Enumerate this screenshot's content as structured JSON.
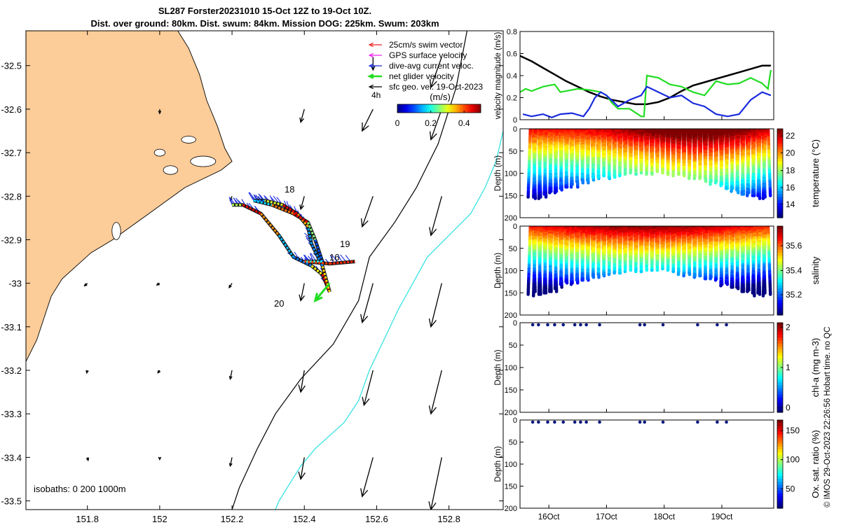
{
  "title": {
    "line1": "SL287 Forster20231010 15-Oct 12Z to 19-Oct 10Z.",
    "line2": "Dist. over ground: 80km. Dist. swum: 84km. Mission DOG: 225km. Swum: 203km"
  },
  "copyright": "© IMOS 29-Oct-2023 22:26:56 Hobart time. no QC",
  "colors": {
    "land": "#fccc99",
    "black": "#000000",
    "cyan": "#39e2e2",
    "green": "#22dd22",
    "blue": "#1a2bdd",
    "red": "#ee2222",
    "magenta": "#ee22ee",
    "navy": "#0a1a80"
  },
  "chart_data": [
    {
      "type": "scatter",
      "id": "map",
      "xlim": [
        151.63,
        152.95
      ],
      "ylim": [
        -33.52,
        -32.42
      ],
      "xticks": [
        151.8,
        152,
        152.2,
        152.4,
        152.6,
        152.8
      ],
      "xtick_labels": [
        "151.8",
        "152",
        "152.2",
        "152.4",
        "152.6",
        "152.8"
      ],
      "yticks": [
        -32.5,
        -32.6,
        -32.7,
        -32.8,
        -32.9,
        -33,
        -33.1,
        -33.2,
        -33.3,
        -33.4,
        -33.5
      ],
      "ytick_labels": [
        "-32.5",
        "-32.6",
        "-32.7",
        "-32.8",
        "-32.9",
        "-33",
        "-33.1",
        "-33.2",
        "-33.3",
        "-33.4",
        "-33.5"
      ],
      "legend": [
        {
          "label": "25cm/s swim vector",
          "color": "#ee2222"
        },
        {
          "label": "GPS surface velocity",
          "color": "#ee22ee"
        },
        {
          "label": "dive-avg current veloc.",
          "color": "#1a2bdd"
        },
        {
          "label": "net glider velocity",
          "color": "#22dd22"
        },
        {
          "label": "sfc geo. vel. 19-Oct-2023",
          "color": "#000000"
        }
      ],
      "legend_extra": "4h",
      "colorbar": {
        "label": "(m/s)",
        "ticks": [
          "0",
          "0.2",
          "0.4"
        ],
        "range": [
          0,
          0.5
        ]
      },
      "isobath_label": "isobaths: 0   200  1000m",
      "track_labels": [
        "18",
        "19",
        "16",
        "20"
      ],
      "coast": [
        [
          151.63,
          -32.42
        ],
        [
          152.05,
          -32.42
        ],
        [
          152.08,
          -32.46
        ],
        [
          152.11,
          -32.52
        ],
        [
          152.13,
          -32.58
        ],
        [
          152.16,
          -32.64
        ],
        [
          152.18,
          -32.69
        ],
        [
          152.2,
          -32.72
        ],
        [
          152.17,
          -32.74
        ],
        [
          152.12,
          -32.76
        ],
        [
          152.07,
          -32.78
        ],
        [
          152.02,
          -32.81
        ],
        [
          151.97,
          -32.84
        ],
        [
          151.92,
          -32.87
        ],
        [
          151.87,
          -32.9
        ],
        [
          151.81,
          -32.93
        ],
        [
          151.77,
          -32.96
        ],
        [
          151.73,
          -32.99
        ],
        [
          151.7,
          -33.03
        ],
        [
          151.68,
          -33.08
        ],
        [
          151.66,
          -33.13
        ],
        [
          151.63,
          -33.18
        ]
      ],
      "isobath_200": [
        [
          152.85,
          -32.42
        ],
        [
          152.82,
          -32.55
        ],
        [
          152.77,
          -32.68
        ],
        [
          152.71,
          -32.78
        ],
        [
          152.65,
          -32.86
        ],
        [
          152.58,
          -32.94
        ],
        [
          152.55,
          -33.04
        ],
        [
          152.48,
          -33.14
        ],
        [
          152.39,
          -33.22
        ],
        [
          152.32,
          -33.3
        ],
        [
          152.27,
          -33.38
        ],
        [
          152.22,
          -33.47
        ],
        [
          152.2,
          -33.52
        ]
      ],
      "isobath_1000": [
        [
          152.95,
          -32.65
        ],
        [
          152.93,
          -32.72
        ],
        [
          152.9,
          -32.78
        ],
        [
          152.86,
          -32.84
        ],
        [
          152.8,
          -32.89
        ],
        [
          152.74,
          -32.94
        ],
        [
          152.7,
          -33.0
        ],
        [
          152.66,
          -33.06
        ],
        [
          152.62,
          -33.13
        ],
        [
          152.58,
          -33.2
        ],
        [
          152.55,
          -33.27
        ],
        [
          152.51,
          -33.32
        ],
        [
          152.47,
          -33.35
        ],
        [
          152.43,
          -33.38
        ],
        [
          152.39,
          -33.42
        ],
        [
          152.36,
          -33.46
        ],
        [
          152.33,
          -33.5
        ],
        [
          152.32,
          -33.52
        ]
      ],
      "track": [
        [
          152.2,
          -32.82
        ],
        [
          152.23,
          -32.82
        ],
        [
          152.28,
          -32.84
        ],
        [
          152.33,
          -32.89
        ],
        [
          152.37,
          -32.94
        ],
        [
          152.42,
          -32.96
        ],
        [
          152.45,
          -32.98
        ],
        [
          152.47,
          -33.02
        ],
        [
          152.45,
          -32.96
        ],
        [
          152.42,
          -32.91
        ],
        [
          152.41,
          -32.87
        ],
        [
          152.38,
          -32.84
        ],
        [
          152.34,
          -32.82
        ],
        [
          152.29,
          -32.81
        ],
        [
          152.26,
          -32.81
        ],
        [
          152.31,
          -32.82
        ],
        [
          152.37,
          -32.84
        ],
        [
          152.41,
          -32.86
        ],
        [
          152.43,
          -32.9
        ],
        [
          152.45,
          -32.95
        ],
        [
          152.4,
          -32.95
        ],
        [
          152.47,
          -32.955
        ],
        [
          152.54,
          -32.95
        ]
      ],
      "net_velocity": {
        "from": [
          152.47,
          -33.0
        ],
        "to": [
          152.43,
          -33.04
        ]
      },
      "geo_vectors": [
        [
          151.8,
          -33.0,
          -0.008,
          -0.006
        ],
        [
          152.0,
          -33.0,
          -0.008,
          -0.004
        ],
        [
          152.2,
          -33.0,
          -0.008,
          -0.01
        ],
        [
          152.4,
          -33.0,
          -0.01,
          -0.04
        ],
        [
          152.59,
          -33.0,
          -0.03,
          -0.09
        ],
        [
          152.78,
          -33.0,
          -0.03,
          -0.1
        ],
        [
          151.8,
          -33.2,
          -0.002,
          -0.006
        ],
        [
          152.0,
          -33.2,
          -0.005,
          -0.006
        ],
        [
          152.2,
          -33.2,
          -0.005,
          -0.02
        ],
        [
          152.4,
          -33.2,
          -0.01,
          -0.05
        ],
        [
          152.59,
          -33.2,
          -0.025,
          -0.08
        ],
        [
          152.78,
          -33.2,
          -0.03,
          -0.1
        ],
        [
          151.8,
          -33.4,
          0.002,
          -0.007
        ],
        [
          152.0,
          -33.4,
          0.0,
          -0.005
        ],
        [
          152.2,
          -33.4,
          -0.005,
          -0.02
        ],
        [
          152.4,
          -33.4,
          -0.01,
          -0.05
        ],
        [
          152.59,
          -33.4,
          -0.03,
          -0.09
        ],
        [
          152.78,
          -33.4,
          -0.03,
          -0.12
        ],
        [
          152.0,
          -32.6,
          0.0,
          -0.01
        ],
        [
          152.4,
          -32.6,
          -0.01,
          -0.03
        ],
        [
          152.59,
          -32.6,
          -0.03,
          -0.05
        ],
        [
          152.78,
          -32.6,
          -0.03,
          -0.07
        ],
        [
          152.2,
          -32.8,
          -0.005,
          -0.01
        ],
        [
          152.4,
          -32.8,
          -0.01,
          -0.03
        ],
        [
          152.59,
          -32.8,
          -0.03,
          -0.07
        ],
        [
          152.78,
          -32.8,
          -0.03,
          -0.09
        ],
        [
          152.59,
          -32.48,
          0.0,
          -0.03
        ],
        [
          152.78,
          -32.48,
          -0.03,
          -0.07
        ]
      ]
    },
    {
      "type": "line",
      "id": "velocity",
      "ylabel": "velocity magnitude (m/s)",
      "ylim": [
        0,
        0.8
      ],
      "yticks": [
        0,
        0.2,
        0.4,
        0.6,
        0.8
      ],
      "ytick_labels": [
        "0",
        "0.2",
        "0.4",
        "0.6",
        "0.8"
      ],
      "xlim": [
        15.5,
        19.9
      ],
      "series": [
        {
          "name": "sfc geo. vel.",
          "color": "#000000",
          "x": [
            15.5,
            15.7,
            15.9,
            16.1,
            16.3,
            16.5,
            16.7,
            16.9,
            17.1,
            17.3,
            17.5,
            17.7,
            17.9,
            18.1,
            18.3,
            18.5,
            18.7,
            18.9,
            19.1,
            19.3,
            19.5,
            19.7,
            19.85
          ],
          "y": [
            0.58,
            0.53,
            0.47,
            0.41,
            0.35,
            0.3,
            0.25,
            0.21,
            0.18,
            0.16,
            0.14,
            0.14,
            0.16,
            0.2,
            0.26,
            0.31,
            0.34,
            0.37,
            0.4,
            0.43,
            0.46,
            0.49,
            0.49
          ]
        },
        {
          "name": "net glider velocity",
          "color": "#22dd22",
          "x": [
            15.5,
            15.6,
            15.7,
            15.9,
            16.1,
            16.2,
            16.3,
            16.5,
            16.7,
            16.9,
            17.0,
            17.1,
            17.2,
            17.4,
            17.6,
            17.65,
            17.7,
            17.9,
            18.1,
            18.3,
            18.5,
            18.7,
            18.9,
            19.1,
            19.3,
            19.5,
            19.7,
            19.8,
            19.85
          ],
          "y": [
            0.25,
            0.28,
            0.26,
            0.3,
            0.32,
            0.25,
            0.26,
            0.28,
            0.27,
            0.25,
            0.22,
            0.15,
            0.1,
            0.1,
            0.03,
            0.03,
            0.4,
            0.38,
            0.32,
            0.3,
            0.25,
            0.22,
            0.35,
            0.32,
            0.33,
            0.38,
            0.33,
            0.28,
            0.45
          ]
        },
        {
          "name": "dive-avg current",
          "color": "#1a2bdd",
          "x": [
            15.55,
            15.7,
            15.8,
            15.9,
            16.05,
            16.2,
            16.4,
            16.6,
            16.7,
            16.8,
            16.9,
            17.0,
            17.2,
            17.4,
            17.6,
            17.7,
            17.9,
            18.1,
            18.3,
            18.5,
            18.7,
            18.9,
            19.1,
            19.3,
            19.5,
            19.7,
            19.85
          ],
          "y": [
            0.05,
            0.03,
            0.04,
            0.05,
            0.02,
            0.05,
            0.06,
            0.03,
            0.1,
            0.2,
            0.25,
            0.22,
            0.12,
            0.18,
            0.22,
            0.3,
            0.25,
            0.2,
            0.22,
            0.15,
            0.12,
            0.05,
            0.03,
            0.05,
            0.18,
            0.25,
            0.22
          ]
        }
      ]
    },
    {
      "type": "scatter",
      "id": "temperature",
      "ylabel": "Depth (m)",
      "ylim": [
        0,
        200
      ],
      "yticks": [
        0,
        50,
        100,
        150,
        200
      ],
      "ytick_labels": [
        "0",
        "50",
        "100",
        "150",
        "200"
      ],
      "cbar_label": "temperature (°C)",
      "cbar_ticks": [
        "22",
        "20",
        "18",
        "16",
        "14"
      ]
    },
    {
      "type": "scatter",
      "id": "salinity",
      "ylabel": "Depth (m)",
      "ylim": [
        0,
        200
      ],
      "yticks": [
        0,
        50,
        100,
        150,
        200
      ],
      "ytick_labels": [
        "0",
        "50",
        "100",
        "150",
        "200"
      ],
      "cbar_label": "salinity",
      "cbar_ticks": [
        "35.6",
        "35.4",
        "35.2"
      ]
    },
    {
      "type": "scatter",
      "id": "chla",
      "ylabel": "Depth (m)",
      "ylim": [
        0,
        200
      ],
      "yticks": [
        0,
        50,
        100,
        150,
        200
      ],
      "ytick_labels": [
        "0",
        "50",
        "100",
        "150",
        "200"
      ],
      "cbar_label": "chl-a (mg m-3)",
      "cbar_ticks": [
        "2",
        "1",
        "0"
      ],
      "points_x": [
        15.72,
        15.82,
        15.98,
        16.1,
        16.25,
        16.45,
        16.55,
        16.65,
        16.88,
        17.58,
        17.66,
        17.98,
        18.58,
        18.92,
        19.08
      ]
    },
    {
      "type": "scatter",
      "id": "oxygen",
      "ylabel": "Depth (m)",
      "ylim": [
        0,
        200
      ],
      "yticks": [
        0,
        50,
        100,
        150,
        200
      ],
      "ytick_labels": [
        "0",
        "50",
        "100",
        "150",
        "200"
      ],
      "cbar_label": "Ox. sat. ratio (%)",
      "cbar_ticks": [
        "150",
        "100",
        "50"
      ],
      "points_x": [
        15.72,
        15.82,
        15.98,
        16.1,
        16.25,
        16.45,
        16.55,
        16.65,
        16.88,
        17.58,
        17.66,
        17.98,
        18.58,
        18.92,
        19.08
      ]
    },
    {
      "type": "table",
      "id": "time_axis",
      "xticks": [
        16,
        17,
        18,
        19
      ],
      "xtick_labels": [
        "16Oct",
        "17Oct",
        "18Oct",
        "19Oct"
      ]
    }
  ]
}
